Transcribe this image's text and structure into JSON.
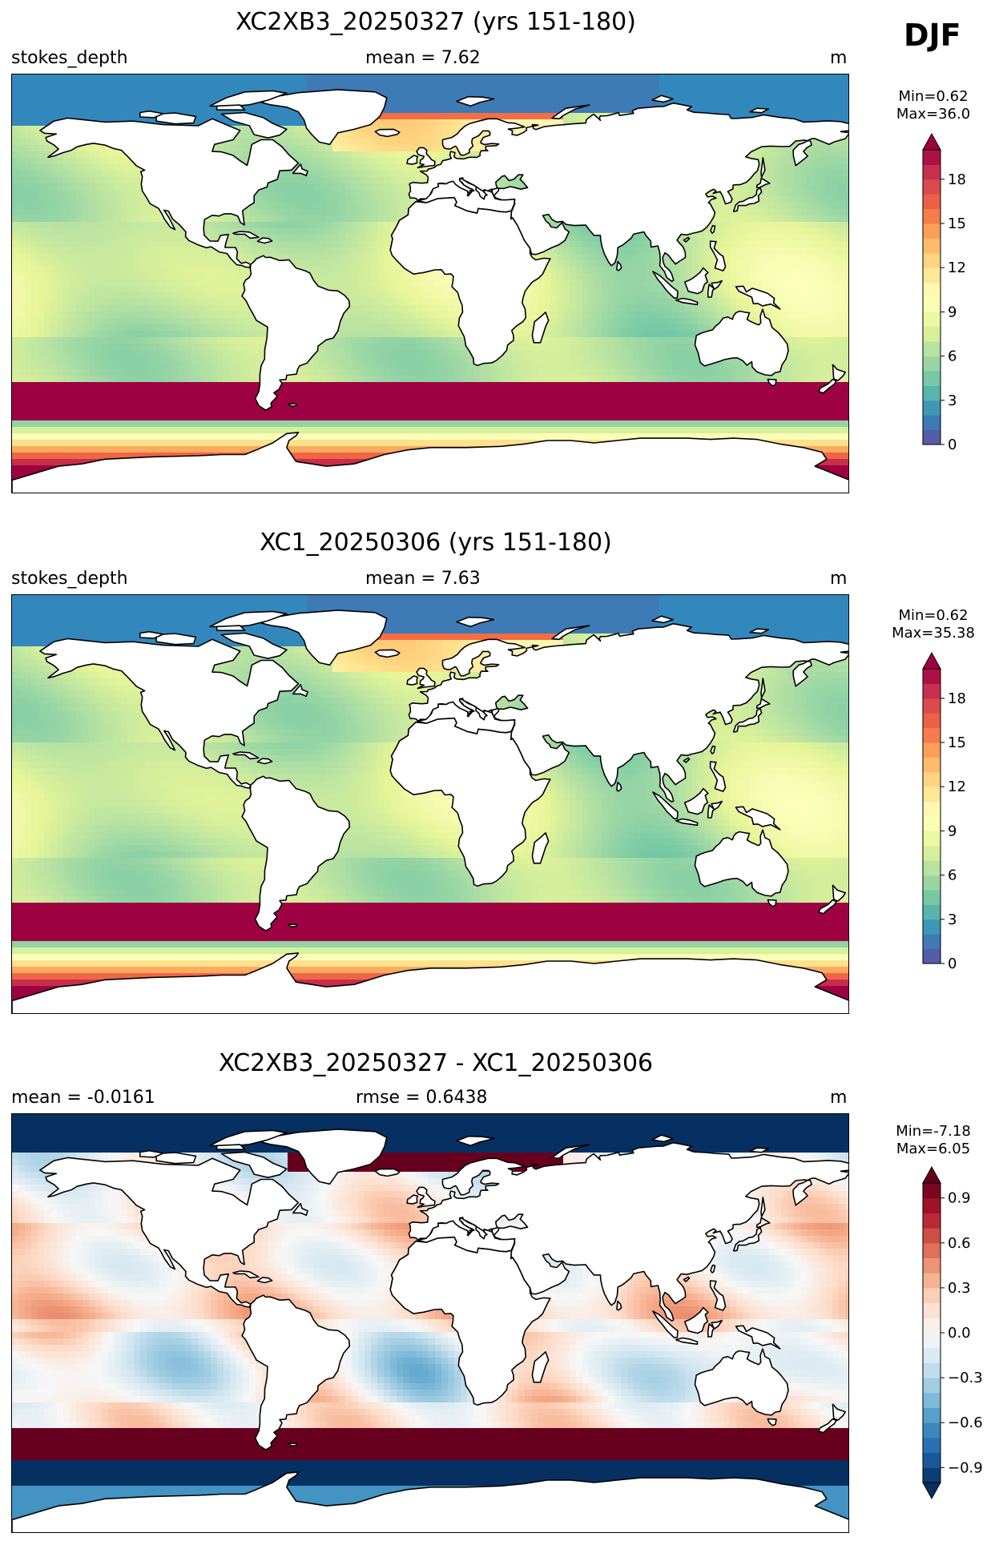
{
  "season": "DJF",
  "panels": [
    {
      "title": "XC2XB3_20250327 (yrs 151-180)",
      "left_label": "stokes_depth",
      "center_label": "mean = 7.62",
      "units": "m",
      "cb_min": "Min=0.62",
      "cb_max": "Max=36.0",
      "cb_ticks": [
        "0",
        "3",
        "6",
        "9",
        "12",
        "15",
        "18"
      ],
      "cb_range": [
        0,
        20
      ],
      "extend": "max",
      "colormap": "Spectral_r"
    },
    {
      "title": "XC1_20250306 (yrs 151-180)",
      "left_label": "stokes_depth",
      "center_label": "mean = 7.63",
      "units": "m",
      "cb_min": "Min=0.62",
      "cb_max": "Max=35.38",
      "cb_ticks": [
        "0",
        "3",
        "6",
        "9",
        "12",
        "15",
        "18"
      ],
      "cb_range": [
        0,
        20
      ],
      "extend": "max",
      "colormap": "Spectral_r"
    },
    {
      "title": "XC2XB3_20250327 - XC1_20250306",
      "left_label": "mean = -0.0161",
      "center_label": "rmse = 0.6438",
      "units": "m",
      "cb_min": "Min=-7.18",
      "cb_max": "Max=6.05",
      "cb_ticks": [
        "−0.9",
        "−0.6",
        "−0.3",
        "0.0",
        "0.3",
        "0.6",
        "0.9"
      ],
      "cb_range": [
        -1,
        1
      ],
      "extend": "both",
      "colormap": "RdBu_r"
    }
  ],
  "colors": {
    "spectral": [
      "#5e4fa2",
      "#3288bd",
      "#66c2a5",
      "#abdda4",
      "#e6f598",
      "#ffffbf",
      "#fee08b",
      "#fdae61",
      "#f46d43",
      "#d53e4f",
      "#9e0142"
    ],
    "rdbu": [
      "#053061",
      "#2166ac",
      "#4393c3",
      "#92c5de",
      "#d1e5f0",
      "#f7f7f7",
      "#fddbc7",
      "#f4a582",
      "#d6604d",
      "#b2182b",
      "#67001f"
    ],
    "land": "#ffffff",
    "coast": "#000000"
  }
}
